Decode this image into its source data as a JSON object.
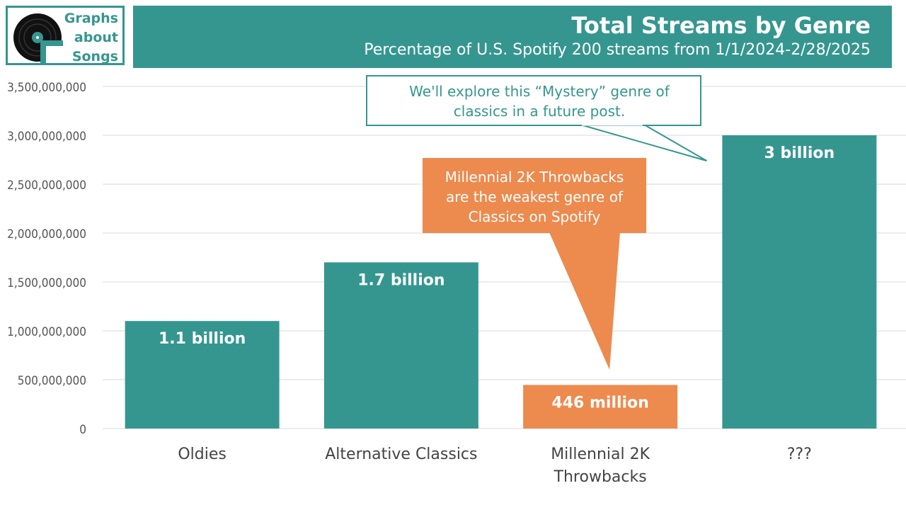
{
  "brand": {
    "lines": [
      "Graphs",
      "about",
      "Songs"
    ]
  },
  "header": {
    "title": "Total Streams by Genre",
    "subtitle": "Percentage of U.S. Spotify 200 streams from 1/1/2024-2/28/2025"
  },
  "colors": {
    "teal": "#359690",
    "orange": "#ED8A4E",
    "grid": "#d9d9d9",
    "axis_text": "#555555"
  },
  "chart_data": {
    "type": "bar",
    "categories": [
      "Oldies",
      "Alternative Classics",
      "Millennial 2K Throwbacks",
      "???"
    ],
    "values": [
      1100000000,
      1700000000,
      446000000,
      3000000000
    ],
    "data_labels": [
      "1.1 billion",
      "1.7 billion",
      "446 million",
      "3 billion"
    ],
    "bar_colors": [
      "#359690",
      "#359690",
      "#ED8A4E",
      "#359690"
    ],
    "ylim": [
      0,
      3500000000
    ],
    "yticks": [
      0,
      500000000,
      1000000000,
      1500000000,
      2000000000,
      2500000000,
      3000000000,
      3500000000
    ],
    "ytick_labels": [
      "0",
      "500,000,000",
      "1,000,000,000",
      "1,500,000,000",
      "2,000,000,000",
      "2,500,000,000",
      "3,000,000,000",
      "3,500,000,000"
    ],
    "grid": true,
    "annotations": [
      {
        "text": "We'll explore this “Mystery” genre of classics in a future post.",
        "target_category": "???",
        "style": "outline"
      },
      {
        "text": "Millennial 2K Throwbacks are the weakest genre of Classics on Spotify",
        "target_category": "Millennial 2K Throwbacks",
        "style": "filled"
      }
    ]
  }
}
